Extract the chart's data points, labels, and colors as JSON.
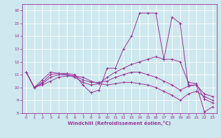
{
  "title": "",
  "xlabel": "Windchill (Refroidissement éolien,°C)",
  "xlim": [
    -0.5,
    23.5
  ],
  "ylim": [
    8,
    16.5
  ],
  "yticks": [
    8,
    9,
    10,
    11,
    12,
    13,
    14,
    15,
    16
  ],
  "xticks": [
    0,
    1,
    2,
    3,
    4,
    5,
    6,
    7,
    8,
    9,
    10,
    11,
    12,
    13,
    14,
    15,
    16,
    17,
    18,
    19,
    20,
    21,
    22,
    23
  ],
  "bg_color": "#cde8ee",
  "line_color": "#993399",
  "grid_color": "#ffffff",
  "lines": [
    {
      "x": [
        0,
        1,
        2,
        3,
        4,
        5,
        6,
        7,
        8,
        9,
        10,
        11,
        12,
        13,
        14,
        15,
        16,
        17,
        18,
        19,
        20,
        21,
        22,
        23
      ],
      "y": [
        11.2,
        10.0,
        10.6,
        11.2,
        11.1,
        11.1,
        11.0,
        10.2,
        9.6,
        9.8,
        11.5,
        11.5,
        13.0,
        14.0,
        15.8,
        15.8,
        15.8,
        12.2,
        15.5,
        15.0,
        10.2,
        10.2,
        8.1,
        8.5
      ]
    },
    {
      "x": [
        0,
        1,
        2,
        3,
        4,
        5,
        6,
        7,
        8,
        9,
        10,
        11,
        12,
        13,
        14,
        15,
        16,
        17,
        18,
        19,
        20,
        21,
        22,
        23
      ],
      "y": [
        11.2,
        10.0,
        10.4,
        11.0,
        11.1,
        11.0,
        10.8,
        10.4,
        10.2,
        10.3,
        10.8,
        11.2,
        11.5,
        11.8,
        12.0,
        12.2,
        12.4,
        12.2,
        12.2,
        12.0,
        10.4,
        10.3,
        9.1,
        8.8
      ]
    },
    {
      "x": [
        0,
        1,
        2,
        3,
        4,
        5,
        6,
        7,
        8,
        9,
        10,
        11,
        12,
        13,
        14,
        15,
        16,
        17,
        18,
        19,
        20,
        21,
        22,
        23
      ],
      "y": [
        11.2,
        10.0,
        10.3,
        10.8,
        11.0,
        11.0,
        10.9,
        10.6,
        10.4,
        10.4,
        10.5,
        10.8,
        11.0,
        11.2,
        11.2,
        11.0,
        10.8,
        10.5,
        10.2,
        9.8,
        10.1,
        10.2,
        9.5,
        9.3
      ]
    },
    {
      "x": [
        0,
        1,
        2,
        3,
        4,
        5,
        6,
        7,
        8,
        9,
        10,
        11,
        12,
        13,
        14,
        15,
        16,
        17,
        18,
        19,
        20,
        21,
        22,
        23
      ],
      "y": [
        11.2,
        10.0,
        10.2,
        10.5,
        10.8,
        10.9,
        10.9,
        10.8,
        10.5,
        10.3,
        10.2,
        10.3,
        10.4,
        10.4,
        10.3,
        10.2,
        10.0,
        9.7,
        9.4,
        9.0,
        9.5,
        9.7,
        9.3,
        9.0
      ]
    }
  ]
}
